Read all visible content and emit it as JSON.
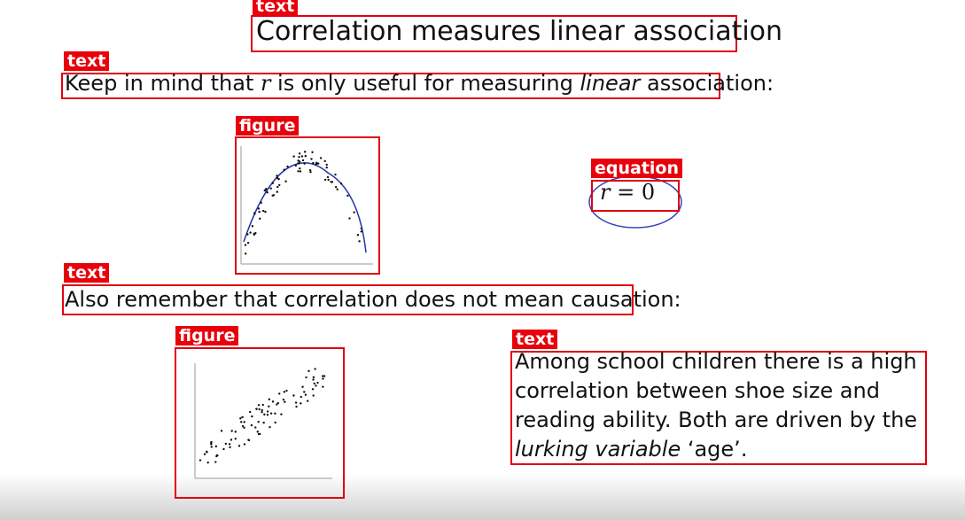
{
  "regions": [
    {
      "label": "text",
      "content": [
        "Correlation measures linear association"
      ]
    },
    {
      "label": "text",
      "content": [
        "Keep in mind that ",
        "r",
        " is only useful for measuring ",
        "linear",
        " association:"
      ]
    },
    {
      "label": "figure"
    },
    {
      "label": "equation",
      "content": [
        "r",
        " = 0"
      ]
    },
    {
      "label": "text",
      "content": [
        "Also remember that correlation does not mean causation:"
      ]
    },
    {
      "label": "figure"
    },
    {
      "label": "text",
      "content": [
        "Among school children there is a high correlation between shoe size and reading ability. Both are driven by the ",
        "lurking variable",
        " ‘age’."
      ]
    }
  ]
}
